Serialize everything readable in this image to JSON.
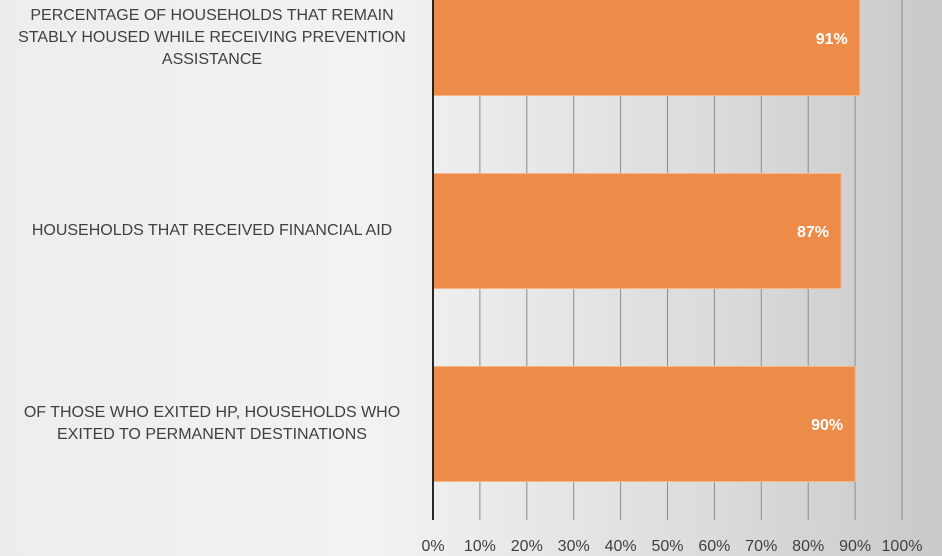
{
  "chart_data": {
    "type": "bar",
    "orientation": "horizontal",
    "categories": [
      "PERCENTAGE OF HOUSEHOLDS THAT REMAIN\nSTABLY HOUSED WHILE RECEIVING PREVENTION\nASSISTANCE",
      "HOUSEHOLDS THAT RECEIVED FINANCIAL AID",
      "OF THOSE WHO EXITED HP, HOUSEHOLDS WHO\nEXITED TO PERMANENT DESTINATIONS"
    ],
    "values": [
      91,
      87,
      90
    ],
    "data_labels": [
      "91%",
      "87%",
      "90%"
    ],
    "xlim": [
      0,
      100
    ],
    "xticks": [
      "0%",
      "10%",
      "20%",
      "30%",
      "40%",
      "50%",
      "60%",
      "70%",
      "80%",
      "90%",
      "100%"
    ],
    "grid": true,
    "bar_color": "#ed8b49",
    "xlabel": "",
    "ylabel": ""
  }
}
